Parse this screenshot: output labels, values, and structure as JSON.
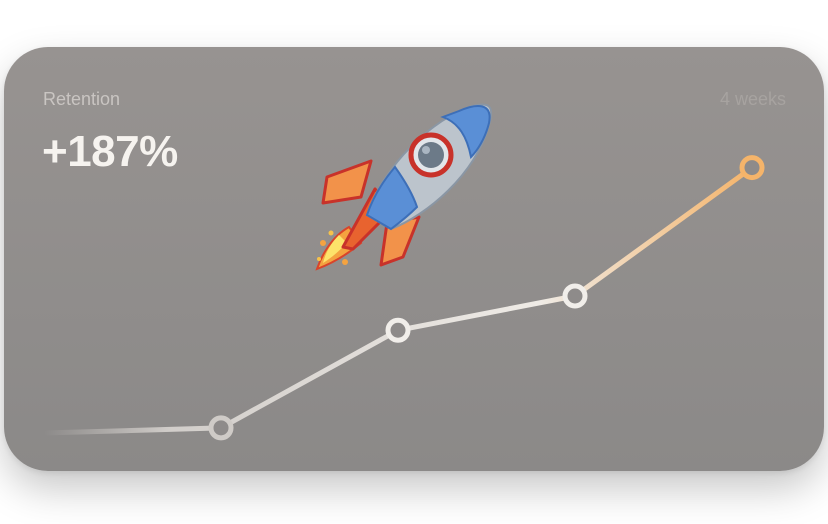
{
  "widget": {
    "metric_label": "Retention",
    "metric_value": "+187%",
    "period_label": "4 weeks",
    "decoration_icon": "rocket-icon"
  },
  "colors": {
    "card_background": "#8f8c8b",
    "line_start": "#d9d5d1",
    "line_end": "#f5b46a",
    "value_text": "#f6f3ef"
  },
  "chart_data": {
    "type": "line",
    "title": "",
    "xlabel": "",
    "ylabel": "",
    "x": [
      0,
      1,
      2,
      3,
      4
    ],
    "series": [
      {
        "values": [
          0,
          3,
          60,
          80,
          155
        ]
      }
    ],
    "markers": [
      1,
      2,
      3,
      4
    ],
    "ylim": [
      0,
      160
    ],
    "grid": false,
    "legend": "none"
  }
}
